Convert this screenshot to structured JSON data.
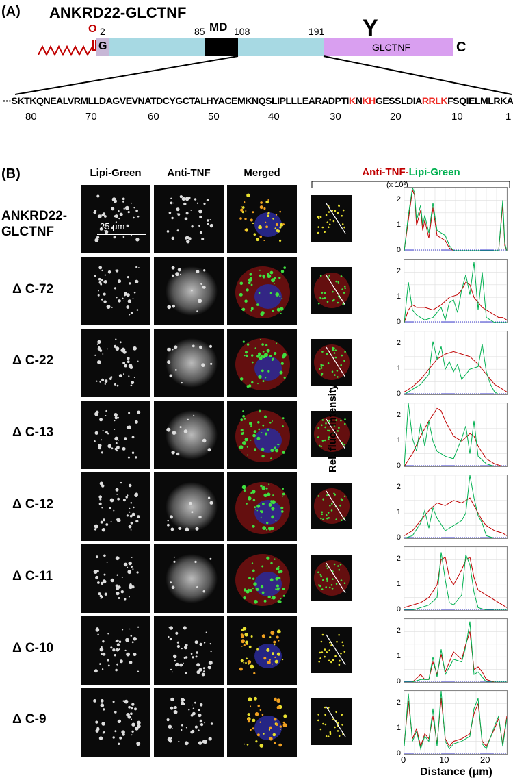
{
  "panel_a": {
    "label": "(A)",
    "construct": "ANKRD22-GLCTNF",
    "positions": [
      "2",
      "85",
      "108",
      "191"
    ],
    "md_label": "MD",
    "g_label": "G",
    "o_label": "O",
    "y_label": "Y",
    "glctnf_label": "GLCTNF",
    "c_label": "C",
    "sequence": {
      "prefix": "···",
      "segments": [
        {
          "text": "SKTKQNEALVRMLLDAGVEVNATDCYGCTALHYACEMKNQSLIPLLLEARADPTI",
          "red": false
        },
        {
          "text": "K",
          "red": true
        },
        {
          "text": "N",
          "red": false
        },
        {
          "text": "KH",
          "red": true
        },
        {
          "text": "GESSLDIA",
          "red": false
        },
        {
          "text": "RRLK",
          "red": true
        },
        {
          "text": "FSQIELMLRKAL",
          "red": false
        }
      ],
      "numbers": [
        "80",
        "70",
        "60",
        "50",
        "40",
        "30",
        "20",
        "10",
        "1"
      ]
    }
  },
  "panel_b": {
    "label": "(B)",
    "columns": [
      "Lipi-Green",
      "Anti-TNF",
      "Merged"
    ],
    "profile_header_part1": "Anti-TNF-",
    "profile_header_part2": "Lipi-Green",
    "x10_label": "(x 10³)",
    "scale_bar": "25 μm",
    "ylabel": "Rel. fluo. intensity",
    "xlabel": "Distance (μm)",
    "xticks": [
      "0",
      "10",
      "20"
    ],
    "yticks": [
      "2",
      "1",
      "0"
    ],
    "rows": [
      {
        "label_line1": "ANKRD22-",
        "label_line2": "GLCTNF"
      },
      {
        "label_line1": "Δ C-72",
        "label_line2": ""
      },
      {
        "label_line1": "Δ C-22",
        "label_line2": ""
      },
      {
        "label_line1": "Δ C-13",
        "label_line2": ""
      },
      {
        "label_line1": "Δ C-12",
        "label_line2": ""
      },
      {
        "label_line1": "Δ C-11",
        "label_line2": ""
      },
      {
        "label_line1": "Δ C-10",
        "label_line2": ""
      },
      {
        "label_line1": "Δ C-9",
        "label_line2": ""
      }
    ],
    "colors": {
      "red": "#c00000",
      "green": "#00b050",
      "axis": "#000000"
    }
  },
  "chart_data": [
    {
      "type": "line",
      "xlim": [
        0,
        25
      ],
      "ylim": [
        0,
        2.5
      ],
      "series": [
        {
          "x": [
            0,
            1,
            2,
            2.5,
            3,
            4,
            4.5,
            5,
            6,
            7,
            8,
            9,
            10,
            11,
            12,
            13,
            14,
            20,
            21,
            22,
            23,
            24,
            24.5,
            25
          ],
          "values": [
            0,
            1.2,
            2.4,
            2.2,
            1.0,
            1.6,
            0.8,
            1.2,
            0.5,
            1.7,
            0.6,
            0.5,
            0.4,
            0.1,
            0,
            0,
            0,
            0,
            0,
            0,
            0,
            1.8,
            0.2,
            0
          ]
        },
        {
          "x": [
            0,
            1,
            2,
            2.5,
            3,
            4,
            4.5,
            5,
            6,
            7,
            8,
            9,
            10,
            11,
            12,
            13,
            14,
            20,
            21,
            22,
            23,
            24,
            24.5,
            25
          ],
          "values": [
            0,
            1.4,
            2.5,
            2.3,
            1.2,
            1.8,
            1.0,
            1.4,
            0.7,
            1.9,
            0.8,
            0.7,
            0.6,
            0.2,
            0,
            0,
            0,
            0,
            0,
            0,
            0,
            2.0,
            0.3,
            0
          ]
        }
      ]
    },
    {
      "type": "line",
      "xlim": [
        0,
        25
      ],
      "ylim": [
        0,
        2.5
      ],
      "series": [
        {
          "x": [
            0,
            1,
            2,
            3,
            5,
            7,
            9,
            11,
            13,
            14,
            15,
            16,
            17,
            18,
            19,
            20,
            21,
            22,
            23,
            24,
            25
          ],
          "values": [
            0,
            0.5,
            0.7,
            0.6,
            0.6,
            0.5,
            0.7,
            1.0,
            1.1,
            1.3,
            1.6,
            1.5,
            1.0,
            0.8,
            0.6,
            0.5,
            0.4,
            0.3,
            0.2,
            0.2,
            0.1
          ]
        },
        {
          "x": [
            0,
            1,
            2,
            3,
            5,
            7,
            9,
            10,
            11,
            12,
            13,
            14,
            15,
            16,
            17,
            18,
            19,
            20,
            21,
            22,
            23,
            24,
            25
          ],
          "values": [
            0,
            1.6,
            0.5,
            0.3,
            0.1,
            0.2,
            0.6,
            0.1,
            0.8,
            0.9,
            0.4,
            1.3,
            1.9,
            1.1,
            2.4,
            0.5,
            2.0,
            0.2,
            0.1,
            0,
            0,
            0,
            0
          ]
        }
      ]
    },
    {
      "type": "line",
      "xlim": [
        0,
        25
      ],
      "ylim": [
        0,
        2.5
      ],
      "series": [
        {
          "x": [
            0,
            2,
            4,
            6,
            8,
            10,
            12,
            14,
            16,
            18,
            20,
            22,
            24,
            25
          ],
          "values": [
            0.1,
            0.3,
            0.6,
            1.0,
            1.4,
            1.6,
            1.7,
            1.6,
            1.5,
            1.2,
            0.8,
            0.4,
            0.2,
            0.1
          ]
        },
        {
          "x": [
            0,
            2,
            4,
            6,
            7,
            8,
            9,
            10,
            11,
            12,
            13,
            14,
            16,
            18,
            19,
            20,
            21,
            22,
            23,
            24,
            25
          ],
          "values": [
            0,
            0.2,
            0.4,
            0.8,
            2.1,
            1.4,
            1.9,
            1.0,
            1.3,
            0.9,
            1.2,
            0.6,
            1.0,
            1.1,
            2.0,
            0.9,
            0.4,
            0.1,
            0,
            0,
            0
          ]
        }
      ]
    },
    {
      "type": "line",
      "xlim": [
        0,
        25
      ],
      "ylim": [
        0,
        2.5
      ],
      "series": [
        {
          "x": [
            0,
            2,
            4,
            6,
            8,
            9,
            10,
            12,
            14,
            16,
            17,
            18,
            20,
            22,
            24,
            25
          ],
          "values": [
            0,
            0.5,
            1.2,
            1.8,
            2.3,
            2.2,
            1.8,
            1.2,
            1.0,
            1.3,
            1.2,
            0.8,
            0.3,
            0.1,
            0,
            0
          ]
        },
        {
          "x": [
            0,
            1,
            2,
            3,
            4,
            5,
            6,
            7,
            8,
            10,
            12,
            14,
            15,
            16,
            17,
            18,
            20,
            22,
            24,
            25
          ],
          "values": [
            0,
            2.5,
            1.1,
            0.6,
            1.7,
            0.8,
            1.8,
            1.0,
            0.6,
            0.4,
            0.3,
            1.1,
            1.6,
            0.5,
            1.8,
            0.4,
            0.1,
            0,
            0,
            0
          ]
        }
      ]
    },
    {
      "type": "line",
      "xlim": [
        0,
        25
      ],
      "ylim": [
        0,
        2.5
      ],
      "series": [
        {
          "x": [
            0,
            2,
            4,
            6,
            8,
            10,
            12,
            14,
            16,
            17,
            18,
            19,
            20,
            22,
            24,
            25
          ],
          "values": [
            0.1,
            0.3,
            0.7,
            1.1,
            1.4,
            1.3,
            1.5,
            1.4,
            1.6,
            1.3,
            1.0,
            0.7,
            0.5,
            0.3,
            0.2,
            0.1
          ]
        },
        {
          "x": [
            0,
            2,
            4,
            5,
            6,
            7,
            8,
            10,
            12,
            14,
            15,
            16,
            17,
            18,
            19,
            20,
            22,
            24,
            25
          ],
          "values": [
            0,
            0.1,
            0.6,
            1.1,
            0.4,
            1.2,
            0.8,
            0.3,
            0.5,
            0.7,
            1.0,
            2.5,
            1.6,
            0.9,
            0.6,
            0.1,
            0,
            0,
            0
          ]
        }
      ]
    },
    {
      "type": "line",
      "xlim": [
        0,
        25
      ],
      "ylim": [
        0,
        2.5
      ],
      "series": [
        {
          "x": [
            0,
            2,
            4,
            6,
            8,
            9,
            10,
            11,
            12,
            14,
            15,
            16,
            17,
            18,
            20,
            22,
            24,
            25
          ],
          "values": [
            0.1,
            0.2,
            0.3,
            0.5,
            1.0,
            2.0,
            2.1,
            1.3,
            1.0,
            1.6,
            2.0,
            2.1,
            1.3,
            0.8,
            0.6,
            0.4,
            0.2,
            0.1
          ]
        },
        {
          "x": [
            0,
            2,
            4,
            6,
            8,
            9,
            10,
            11,
            12,
            14,
            15,
            16,
            17,
            18,
            20,
            22,
            24,
            25
          ],
          "values": [
            0,
            0,
            0.1,
            0.2,
            0.5,
            2.3,
            1.2,
            0.3,
            0.2,
            0.6,
            2.2,
            1.8,
            0.7,
            0.1,
            0,
            0,
            0,
            0
          ]
        }
      ]
    },
    {
      "type": "line",
      "xlim": [
        0,
        25
      ],
      "ylim": [
        0,
        2.5
      ],
      "series": [
        {
          "x": [
            0,
            2,
            4,
            5,
            6,
            7,
            8,
            9,
            10,
            12,
            14,
            15,
            16,
            17,
            18,
            19,
            20,
            22,
            24,
            25
          ],
          "values": [
            0,
            0,
            0.3,
            0.1,
            0.1,
            0.8,
            0.3,
            1.1,
            0.4,
            1.2,
            0.9,
            1.5,
            2.0,
            0.5,
            0.6,
            0.4,
            0.1,
            0,
            0,
            0
          ]
        },
        {
          "x": [
            0,
            2,
            4,
            5,
            6,
            7,
            8,
            9,
            10,
            12,
            14,
            15,
            16,
            17,
            18,
            19,
            20,
            22,
            24,
            25
          ],
          "values": [
            0,
            0,
            0.1,
            0.1,
            0.1,
            1.0,
            0.2,
            1.3,
            0.3,
            0.9,
            0.8,
            1.4,
            2.4,
            0.3,
            0.4,
            0.2,
            0,
            0,
            0,
            0
          ]
        }
      ]
    },
    {
      "type": "line",
      "xlim": [
        0,
        25
      ],
      "ylim": [
        0,
        2.5
      ],
      "series": [
        {
          "x": [
            0,
            1,
            2,
            3,
            4,
            5,
            6,
            7,
            8,
            9,
            10,
            11,
            12,
            14,
            16,
            17,
            18,
            19,
            20,
            22,
            23,
            24,
            25
          ],
          "values": [
            0.4,
            2.1,
            0.6,
            1.0,
            0.3,
            0.8,
            0.6,
            1.5,
            0.4,
            2.2,
            0.6,
            0.3,
            0.5,
            0.6,
            0.8,
            1.6,
            2.0,
            0.5,
            0.3,
            1.0,
            1.4,
            0.4,
            1.5
          ]
        },
        {
          "x": [
            0,
            1,
            2,
            3,
            4,
            5,
            6,
            7,
            8,
            9,
            10,
            11,
            12,
            14,
            16,
            17,
            18,
            19,
            20,
            22,
            23,
            24,
            25
          ],
          "values": [
            0.3,
            2.4,
            0.5,
            0.9,
            0.2,
            0.7,
            0.5,
            1.8,
            0.3,
            2.5,
            0.5,
            0.2,
            0.4,
            0.5,
            0.7,
            1.8,
            2.2,
            0.4,
            0.2,
            1.1,
            1.5,
            0.3,
            1.4
          ]
        }
      ]
    }
  ]
}
